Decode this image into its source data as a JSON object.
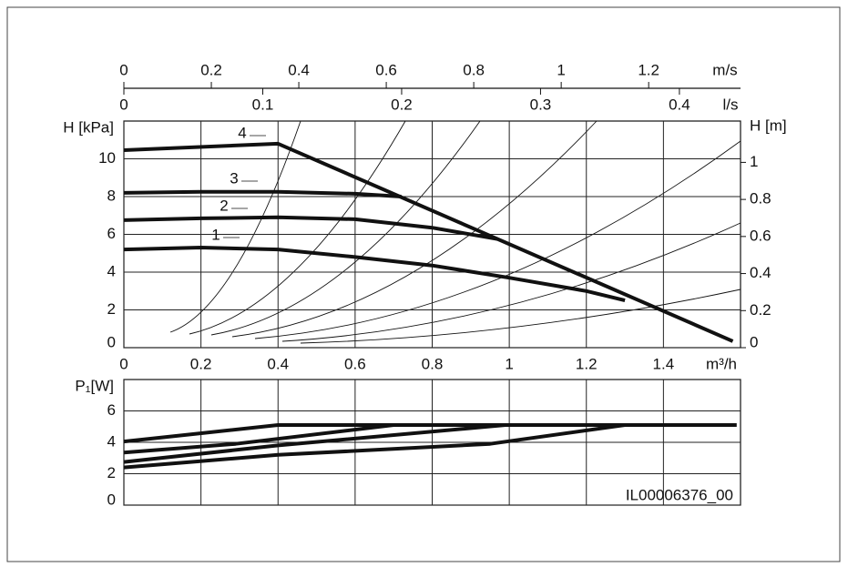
{
  "chart_data": [
    {
      "type": "line",
      "x_label": "m³/h",
      "y_label": "H [kPa]",
      "y2_label": "H [m]",
      "xlim": [
        0,
        1.6
      ],
      "xticks": [
        0,
        0.2,
        0.4,
        0.6,
        0.8,
        1,
        1.2,
        1.4
      ],
      "ylim": [
        0,
        12
      ],
      "yticks": [
        0,
        2,
        4,
        6,
        8,
        10
      ],
      "y2lim": [
        0,
        1.223
      ],
      "y2ticks": [
        0,
        0.2,
        0.4,
        0.6,
        0.8,
        1
      ],
      "top_axes": [
        {
          "label": "m/s",
          "lim": [
            0,
            1.41
          ],
          "ticks": [
            0,
            0.2,
            0.4,
            0.6,
            0.8,
            1,
            1.2
          ]
        },
        {
          "label": "l/s",
          "lim": [
            0,
            0.444
          ],
          "ticks": [
            0,
            0.1,
            0.2,
            0.3,
            0.4
          ]
        }
      ],
      "grid": true,
      "series": [
        {
          "name": "1",
          "color": "#111111",
          "x": [
            0,
            0.2,
            0.4,
            0.6,
            0.8,
            1,
            1.2,
            1.3
          ],
          "values": [
            5.2,
            5.3,
            5.2,
            4.8,
            4.35,
            3.7,
            3.0,
            2.5
          ]
        },
        {
          "name": "2",
          "color": "#111111",
          "x": [
            0,
            0.2,
            0.4,
            0.6,
            0.8,
            0.97
          ],
          "values": [
            6.75,
            6.85,
            6.9,
            6.8,
            6.35,
            5.75
          ]
        },
        {
          "name": "3",
          "color": "#111111",
          "x": [
            0,
            0.2,
            0.4,
            0.6,
            0.72
          ],
          "values": [
            8.2,
            8.25,
            8.25,
            8.15,
            8.0
          ]
        },
        {
          "name": "4",
          "color": "#111111",
          "x": [
            0,
            0.4,
            1.58
          ],
          "values": [
            10.46,
            10.8,
            0.34
          ]
        }
      ]
    },
    {
      "type": "line",
      "y_label": "P₁[W]",
      "annotation": "IL00006376_00",
      "xlim": [
        0,
        1.6
      ],
      "xticks": [
        0,
        0.2,
        0.4,
        0.6,
        0.8,
        1,
        1.2,
        1.4
      ],
      "ylim": [
        0,
        8
      ],
      "yticks": [
        0,
        2,
        4,
        6
      ],
      "grid": true,
      "series": [
        {
          "color": "#111111",
          "x": [
            0,
            0.4,
            0.95,
            1.3
          ],
          "values": [
            2.4,
            3.2,
            3.9,
            5.1
          ]
        },
        {
          "color": "#111111",
          "x": [
            0,
            0.4,
            0.99
          ],
          "values": [
            2.75,
            3.8,
            5.1
          ]
        },
        {
          "color": "#111111",
          "x": [
            0,
            0.29,
            0.7
          ],
          "values": [
            3.35,
            3.9,
            5.1
          ]
        },
        {
          "color": "#111111",
          "x": [
            0,
            0.4,
            1.59
          ],
          "values": [
            4.05,
            5.1,
            5.1
          ]
        }
      ]
    }
  ]
}
